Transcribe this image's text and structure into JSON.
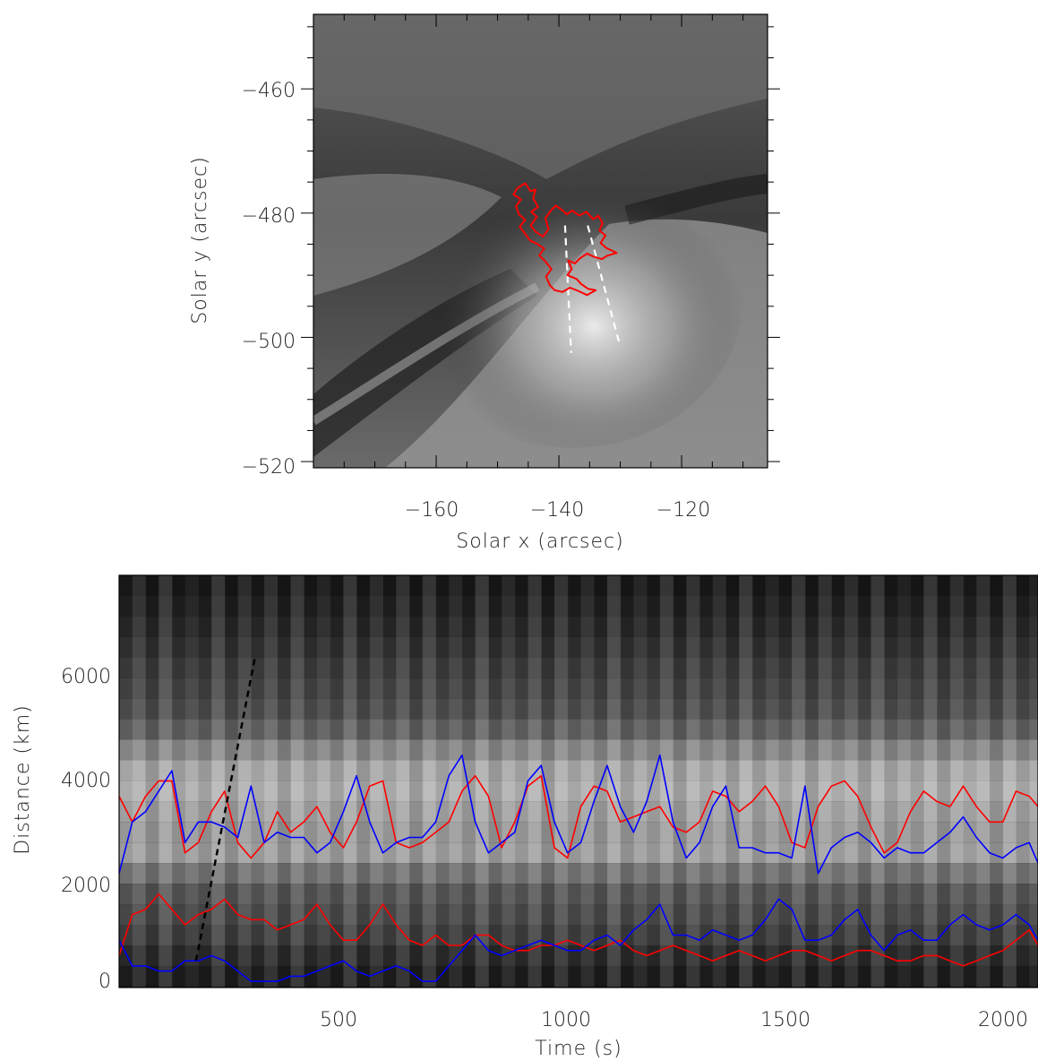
{
  "chart_data": [
    {
      "type": "heatmap",
      "title": "",
      "xlabel": "Solar x (arcsec)",
      "ylabel": "Solar y (arcsec)",
      "xlim": [
        -180,
        -106
      ],
      "ylim": [
        -521,
        -448
      ],
      "x_ticks": [
        -160,
        -140,
        -120
      ],
      "y_ticks": [
        -460,
        -480,
        -500,
        -520
      ],
      "x_tick_labels": [
        "−160",
        "−140",
        "−120"
      ],
      "y_tick_labels": [
        "−460",
        "−480",
        "−500",
        "−520"
      ],
      "contour_color": "#ff0000",
      "slit_color": "#ffffff",
      "contour": [
        [
          -146.8,
          -476.0
        ],
        [
          -145.5,
          -475.2
        ],
        [
          -144.6,
          -476.5
        ],
        [
          -143.8,
          -476.2
        ],
        [
          -144.2,
          -477.6
        ],
        [
          -143.4,
          -479.0
        ],
        [
          -144.5,
          -479.8
        ],
        [
          -143.6,
          -480.6
        ],
        [
          -144.6,
          -482.0
        ],
        [
          -143.8,
          -483.0
        ],
        [
          -142.6,
          -483.8
        ],
        [
          -141.7,
          -482.6
        ],
        [
          -142.2,
          -480.8
        ],
        [
          -141.3,
          -479.6
        ],
        [
          -140.5,
          -478.8
        ],
        [
          -139.6,
          -479.4
        ],
        [
          -138.7,
          -480.2
        ],
        [
          -137.8,
          -479.6
        ],
        [
          -136.7,
          -480.4
        ],
        [
          -135.5,
          -479.8
        ],
        [
          -134.4,
          -481.0
        ],
        [
          -133.6,
          -480.4
        ],
        [
          -132.9,
          -481.6
        ],
        [
          -133.4,
          -482.8
        ],
        [
          -132.4,
          -483.6
        ],
        [
          -133.2,
          -484.8
        ],
        [
          -132.3,
          -485.6
        ],
        [
          -130.6,
          -486.4
        ],
        [
          -132.2,
          -486.9
        ],
        [
          -133.0,
          -487.4
        ],
        [
          -134.4,
          -487.0
        ],
        [
          -135.4,
          -486.5
        ],
        [
          -136.6,
          -487.3
        ],
        [
          -137.4,
          -488.1
        ],
        [
          -138.5,
          -487.6
        ],
        [
          -137.9,
          -489.0
        ],
        [
          -138.6,
          -490.0
        ],
        [
          -137.1,
          -490.6
        ],
        [
          -136.4,
          -491.4
        ],
        [
          -135.2,
          -492.2
        ],
        [
          -134.0,
          -492.4
        ],
        [
          -135.4,
          -493.2
        ],
        [
          -136.9,
          -492.5
        ],
        [
          -138.2,
          -492.0
        ],
        [
          -139.4,
          -492.7
        ],
        [
          -140.7,
          -492.4
        ],
        [
          -141.5,
          -491.6
        ],
        [
          -142.1,
          -490.2
        ],
        [
          -141.2,
          -489.0
        ],
        [
          -142.2,
          -487.8
        ],
        [
          -143.2,
          -486.8
        ],
        [
          -142.4,
          -485.7
        ],
        [
          -143.5,
          -485.0
        ],
        [
          -144.7,
          -484.4
        ],
        [
          -145.6,
          -483.2
        ],
        [
          -146.4,
          -482.2
        ],
        [
          -145.5,
          -481.1
        ],
        [
          -146.5,
          -480.2
        ],
        [
          -147.0,
          -478.9
        ],
        [
          -146.2,
          -477.8
        ],
        [
          -147.4,
          -477.0
        ],
        [
          -146.8,
          -476.0
        ]
      ],
      "slits": [
        {
          "start": [
            -139.0,
            -482.0
          ],
          "end": [
            -138.0,
            -502.5
          ]
        },
        {
          "start": [
            -135.3,
            -482.0
          ],
          "end": [
            -130.0,
            -501.5
          ]
        }
      ]
    },
    {
      "type": "line",
      "title": "",
      "xlabel": "Time (s)",
      "ylabel": "Distance (km)",
      "xlim": [
        0,
        2090
      ],
      "ylim": [
        -220,
        7800
      ],
      "x_ticks": [
        500,
        1000,
        1500,
        2000
      ],
      "y_ticks": [
        0,
        2000,
        4000,
        6000
      ],
      "x_tick_labels": [
        "500",
        "1000",
        "1500",
        "2000"
      ],
      "y_tick_labels": [
        "0",
        "2000",
        "4000",
        "6000"
      ],
      "background_rows": [
        {
          "y": 7600,
          "v": 0.02
        },
        {
          "y": 7200,
          "v": 0.05
        },
        {
          "y": 6800,
          "v": 0.09
        },
        {
          "y": 6400,
          "v": 0.13
        },
        {
          "y": 6000,
          "v": 0.18
        },
        {
          "y": 5600,
          "v": 0.22
        },
        {
          "y": 5200,
          "v": 0.26
        },
        {
          "y": 4800,
          "v": 0.36
        },
        {
          "y": 4400,
          "v": 0.55
        },
        {
          "y": 4000,
          "v": 0.7
        },
        {
          "y": 3600,
          "v": 0.74
        },
        {
          "y": 3200,
          "v": 0.68
        },
        {
          "y": 2800,
          "v": 0.64
        },
        {
          "y": 2400,
          "v": 0.66
        },
        {
          "y": 2000,
          "v": 0.45
        },
        {
          "y": 1600,
          "v": 0.3
        },
        {
          "y": 1200,
          "v": 0.25
        },
        {
          "y": 800,
          "v": 0.19
        },
        {
          "y": 400,
          "v": 0.1
        },
        {
          "y": 0,
          "v": 0.04
        }
      ],
      "trend_line": {
        "color": "#000000",
        "points": [
          [
            175,
            300
          ],
          [
            310,
            6250
          ]
        ]
      },
      "series": [
        {
          "color": "#ff0000",
          "x": [
            0,
            30,
            60,
            90,
            120,
            150,
            180,
            210,
            240,
            270,
            300,
            330,
            360,
            390,
            420,
            450,
            480,
            510,
            540,
            570,
            600,
            630,
            660,
            690,
            720,
            750,
            780,
            810,
            840,
            870,
            900,
            930,
            960,
            990,
            1020,
            1050,
            1080,
            1110,
            1140,
            1170,
            1200,
            1230,
            1260,
            1290,
            1320,
            1350,
            1380,
            1410,
            1440,
            1470,
            1500,
            1530,
            1560,
            1590,
            1620,
            1650,
            1680,
            1710,
            1740,
            1770,
            1800,
            1830,
            1860,
            1890,
            1920,
            1950,
            1980,
            2010,
            2040,
            2070,
            2090
          ],
          "y": [
            3500,
            3000,
            3500,
            3800,
            3800,
            2400,
            2600,
            3200,
            3600,
            2600,
            2300,
            2600,
            3200,
            2800,
            3000,
            3300,
            2800,
            2500,
            3000,
            3700,
            3800,
            2600,
            2500,
            2600,
            2800,
            3000,
            3600,
            3900,
            3500,
            2500,
            3000,
            3700,
            3900,
            2500,
            2300,
            3300,
            3700,
            3600,
            3000,
            3100,
            3200,
            3300,
            2900,
            2800,
            3000,
            3600,
            3500,
            3200,
            3400,
            3700,
            3300,
            2600,
            2500,
            3300,
            3700,
            3800,
            3500,
            2900,
            2400,
            2600,
            3200,
            3600,
            3400,
            3300,
            3700,
            3300,
            3000,
            3000,
            3600,
            3500,
            3300
          ]
        },
        {
          "color": "#ff0000",
          "x": [
            0,
            30,
            60,
            90,
            120,
            150,
            180,
            210,
            240,
            270,
            300,
            330,
            360,
            390,
            420,
            450,
            480,
            510,
            540,
            570,
            600,
            630,
            660,
            690,
            720,
            750,
            780,
            810,
            840,
            870,
            900,
            930,
            960,
            990,
            1020,
            1050,
            1080,
            1110,
            1140,
            1170,
            1200,
            1230,
            1260,
            1290,
            1320,
            1350,
            1380,
            1410,
            1440,
            1470,
            1500,
            1530,
            1560,
            1590,
            1620,
            1650,
            1680,
            1710,
            1740,
            1770,
            1800,
            1830,
            1860,
            1890,
            1920,
            1950,
            1980,
            2010,
            2040,
            2070,
            2090
          ],
          "y": [
            400,
            1200,
            1300,
            1600,
            1300,
            1000,
            1200,
            1300,
            1500,
            1200,
            1100,
            1100,
            900,
            1000,
            1100,
            1400,
            1000,
            700,
            700,
            1000,
            1400,
            1000,
            700,
            600,
            800,
            600,
            600,
            800,
            800,
            600,
            500,
            500,
            600,
            600,
            700,
            600,
            500,
            600,
            700,
            500,
            400,
            500,
            600,
            500,
            400,
            300,
            400,
            500,
            400,
            300,
            400,
            500,
            500,
            400,
            300,
            400,
            500,
            500,
            400,
            300,
            300,
            400,
            400,
            300,
            200,
            300,
            400,
            500,
            700,
            900,
            600
          ]
        },
        {
          "color": "#0000ff",
          "x": [
            0,
            30,
            60,
            90,
            120,
            150,
            180,
            210,
            240,
            270,
            300,
            330,
            360,
            390,
            420,
            450,
            480,
            510,
            540,
            570,
            600,
            630,
            660,
            690,
            720,
            750,
            780,
            810,
            840,
            870,
            900,
            930,
            960,
            990,
            1020,
            1050,
            1080,
            1110,
            1140,
            1170,
            1200,
            1230,
            1260,
            1290,
            1320,
            1350,
            1380,
            1410,
            1440,
            1470,
            1500,
            1530,
            1560,
            1590,
            1620,
            1650,
            1680,
            1710,
            1740,
            1770,
            1800,
            1830,
            1860,
            1890,
            1920,
            1950,
            1980,
            2010,
            2040,
            2070,
            2090
          ],
          "y": [
            2000,
            3000,
            3200,
            3600,
            4000,
            2600,
            3000,
            3000,
            2900,
            2700,
            3700,
            2600,
            2800,
            2700,
            2700,
            2400,
            2600,
            3200,
            3900,
            3000,
            2400,
            2600,
            2700,
            2700,
            3000,
            3900,
            4300,
            3000,
            2400,
            2600,
            2800,
            3800,
            4100,
            3000,
            2400,
            2600,
            3400,
            4100,
            3300,
            2800,
            3400,
            4300,
            3000,
            2300,
            2600,
            3300,
            3700,
            2500,
            2500,
            2400,
            2400,
            2300,
            3700,
            2000,
            2500,
            2700,
            2800,
            2600,
            2300,
            2500,
            2400,
            2400,
            2600,
            2800,
            3100,
            2700,
            2400,
            2300,
            2500,
            2600,
            2200
          ]
        },
        {
          "color": "#0000ff",
          "x": [
            0,
            30,
            60,
            90,
            120,
            150,
            180,
            210,
            240,
            270,
            300,
            330,
            360,
            390,
            420,
            450,
            480,
            510,
            540,
            570,
            600,
            630,
            660,
            690,
            720,
            750,
            780,
            810,
            840,
            870,
            900,
            930,
            960,
            990,
            1020,
            1050,
            1080,
            1110,
            1140,
            1170,
            1200,
            1230,
            1260,
            1290,
            1320,
            1350,
            1380,
            1410,
            1440,
            1470,
            1500,
            1530,
            1560,
            1590,
            1620,
            1650,
            1680,
            1710,
            1740,
            1770,
            1800,
            1830,
            1860,
            1890,
            1920,
            1950,
            1980,
            2010,
            2040,
            2070,
            2090
          ],
          "y": [
            700,
            200,
            200,
            100,
            100,
            300,
            300,
            400,
            300,
            100,
            -100,
            -100,
            -100,
            0,
            0,
            100,
            200,
            300,
            100,
            0,
            100,
            200,
            100,
            -100,
            -100,
            200,
            500,
            800,
            500,
            400,
            500,
            600,
            700,
            600,
            500,
            500,
            700,
            800,
            600,
            900,
            1100,
            1400,
            800,
            800,
            700,
            900,
            800,
            700,
            800,
            1100,
            1500,
            1300,
            700,
            700,
            800,
            1100,
            1300,
            800,
            500,
            800,
            900,
            700,
            700,
            1000,
            1200,
            1000,
            900,
            1000,
            1200,
            1000,
            700
          ]
        }
      ]
    }
  ]
}
